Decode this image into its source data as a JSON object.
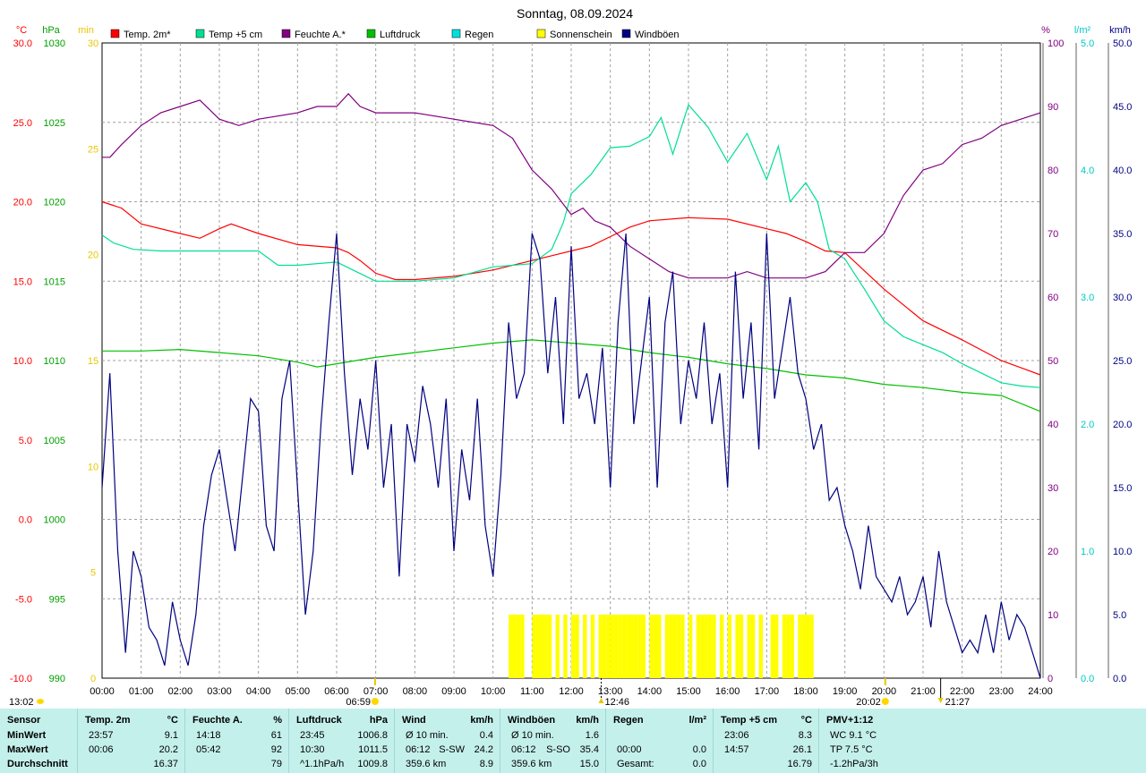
{
  "chart_data": {
    "type": "line",
    "title": "Sonntag, 08.09.2024",
    "x_ticks": [
      "00:00",
      "01:00",
      "02:00",
      "03:00",
      "04:00",
      "05:00",
      "06:00",
      "07:00",
      "08:00",
      "09:00",
      "10:00",
      "11:00",
      "12:00",
      "13:00",
      "14:00",
      "15:00",
      "16:00",
      "17:00",
      "18:00",
      "19:00",
      "20:00",
      "21:00",
      "22:00",
      "23:00",
      "24:00"
    ],
    "x_range": [
      0,
      24
    ],
    "grid": true,
    "legend_position": "top",
    "axes": {
      "temp": {
        "unit": "°C",
        "range": [
          -10,
          30
        ],
        "ticks": [
          "30.0",
          "25.0",
          "20.0",
          "15.0",
          "10.0",
          "5.0",
          "0.0",
          "-5.0",
          "-10.0"
        ],
        "color": "#ff0000"
      },
      "pressure": {
        "unit": "hPa",
        "range": [
          990,
          1030
        ],
        "ticks": [
          "1030",
          "1025",
          "1020",
          "1015",
          "1010",
          "1005",
          "1000",
          "995",
          "990"
        ],
        "color": "#00a000"
      },
      "sun": {
        "unit": "min",
        "range": [
          0,
          30
        ],
        "ticks": [
          "30",
          "25",
          "20",
          "15",
          "10",
          "5",
          "0"
        ],
        "color": "#e6c800"
      },
      "humidity": {
        "unit": "%",
        "range": [
          0,
          100
        ],
        "ticks": [
          "100",
          "90",
          "80",
          "70",
          "60",
          "50",
          "40",
          "30",
          "20",
          "10",
          "0"
        ],
        "color": "#800080"
      },
      "rain": {
        "unit": "l/m²",
        "range": [
          0,
          5
        ],
        "ticks": [
          "5.0",
          "4.0",
          "3.0",
          "2.0",
          "1.0",
          "0.0"
        ],
        "color": "#00c8c8"
      },
      "wind": {
        "unit": "km/h",
        "range": [
          0,
          50
        ],
        "ticks": [
          "50.0",
          "45.0",
          "40.0",
          "35.0",
          "30.0",
          "25.0",
          "20.0",
          "15.0",
          "10.0",
          "5.0",
          "0.0"
        ],
        "color": "#000080"
      }
    },
    "legend": [
      {
        "name": "Temp. 2m*",
        "color": "#ff0000"
      },
      {
        "name": "Temp +5 cm",
        "color": "#00e090"
      },
      {
        "name": "Feuchte A.*",
        "color": "#800080"
      },
      {
        "name": "Luftdruck",
        "color": "#00c000"
      },
      {
        "name": "Regen",
        "color": "#00e0e0"
      },
      {
        "name": "Sonnenschein",
        "color": "#ffff00"
      },
      {
        "name": "Windböen",
        "color": "#000080"
      }
    ],
    "series": [
      {
        "name": "Temp. 2m*",
        "axis": "temp",
        "color": "#ff0000",
        "x": [
          0,
          0.5,
          1,
          2,
          2.5,
          3,
          3.3,
          4,
          5,
          6,
          6.3,
          6.6,
          7,
          7.5,
          8,
          9,
          10,
          11,
          11.5,
          12,
          12.5,
          13,
          13.5,
          14,
          15,
          16,
          17,
          17.5,
          18,
          18.5,
          19,
          20,
          21,
          22,
          23,
          24
        ],
        "y": [
          20.0,
          19.6,
          18.6,
          18.0,
          17.7,
          18.3,
          18.6,
          18.0,
          17.3,
          17.1,
          16.8,
          16.3,
          15.5,
          15.1,
          15.1,
          15.3,
          15.7,
          16.3,
          16.6,
          16.9,
          17.2,
          17.8,
          18.4,
          18.8,
          19.0,
          18.9,
          18.3,
          18.0,
          17.5,
          16.9,
          16.8,
          14.5,
          12.5,
          11.3,
          10.0,
          9.1
        ]
      },
      {
        "name": "Temp +5 cm",
        "axis": "temp",
        "color": "#00e090",
        "x": [
          0,
          0.3,
          0.8,
          1.5,
          2,
          3,
          4,
          4.5,
          5,
          6,
          6.5,
          7,
          8,
          9,
          10,
          11,
          11.5,
          11.8,
          12,
          12.5,
          13,
          13.5,
          14,
          14.3,
          14.6,
          15,
          15.5,
          16,
          16.5,
          17,
          17.3,
          17.6,
          18,
          18.3,
          18.6,
          19,
          19.5,
          20,
          20.5,
          21,
          21.5,
          22,
          22.5,
          23,
          23.5,
          24
        ],
        "y": [
          17.9,
          17.4,
          17.0,
          16.9,
          16.9,
          16.9,
          16.9,
          16.0,
          16.0,
          16.2,
          15.6,
          15.0,
          15.0,
          15.2,
          15.9,
          16.1,
          17.0,
          18.7,
          20.5,
          21.7,
          23.4,
          23.5,
          24.1,
          25.3,
          23.0,
          26.1,
          24.7,
          22.5,
          24.3,
          21.4,
          23.5,
          20.0,
          21.2,
          20.0,
          17.0,
          16.4,
          14.5,
          12.5,
          11.5,
          11.0,
          10.5,
          9.8,
          9.2,
          8.6,
          8.4,
          8.3
        ]
      },
      {
        "name": "Feuchte A.*",
        "axis": "humidity",
        "color": "#800080",
        "x": [
          0,
          0.2,
          0.5,
          1,
          1.5,
          2,
          2.5,
          3,
          3.5,
          4,
          5,
          5.5,
          6,
          6.3,
          6.6,
          7,
          8,
          9,
          10,
          10.5,
          11,
          11.5,
          12,
          12.3,
          12.6,
          13,
          13.5,
          14,
          14.5,
          15,
          15.5,
          16,
          16.5,
          17,
          17.5,
          18,
          18.5,
          19,
          19.5,
          20,
          20.5,
          21,
          21.5,
          22,
          22.5,
          23,
          23.5,
          24
        ],
        "y": [
          82,
          82,
          84,
          87,
          89,
          90,
          91,
          88,
          87,
          88,
          89,
          90,
          90,
          92,
          90,
          89,
          89,
          88,
          87,
          85,
          80,
          77,
          73,
          74,
          72,
          71,
          68,
          66,
          64,
          63,
          63,
          63,
          64,
          63,
          63,
          63,
          64,
          67,
          67,
          70,
          76,
          80,
          81,
          84,
          85,
          87,
          88,
          89
        ]
      },
      {
        "name": "Luftdruck",
        "axis": "pressure",
        "color": "#00c000",
        "x": [
          0,
          1,
          2,
          3,
          4,
          5,
          5.5,
          6,
          7,
          8,
          9,
          10,
          11,
          12,
          13,
          14,
          15,
          16,
          17,
          18,
          19,
          20,
          21,
          22,
          23,
          24
        ],
        "y": [
          1010.6,
          1010.6,
          1010.7,
          1010.5,
          1010.3,
          1009.9,
          1009.6,
          1009.8,
          1010.2,
          1010.5,
          1010.8,
          1011.1,
          1011.3,
          1011.1,
          1010.9,
          1010.5,
          1010.2,
          1009.8,
          1009.5,
          1009.1,
          1008.9,
          1008.5,
          1008.3,
          1008.0,
          1007.8,
          1006.8
        ]
      },
      {
        "name": "Windböen",
        "axis": "wind",
        "color": "#000080",
        "x": [
          0,
          0.2,
          0.4,
          0.6,
          0.8,
          1,
          1.2,
          1.4,
          1.6,
          1.8,
          2,
          2.2,
          2.4,
          2.6,
          2.8,
          3,
          3.2,
          3.4,
          3.6,
          3.8,
          4,
          4.2,
          4.4,
          4.6,
          4.8,
          5,
          5.2,
          5.4,
          5.6,
          5.8,
          6,
          6.2,
          6.4,
          6.6,
          6.8,
          7,
          7.2,
          7.4,
          7.6,
          7.8,
          8,
          8.2,
          8.4,
          8.6,
          8.8,
          9,
          9.2,
          9.4,
          9.6,
          9.8,
          10,
          10.2,
          10.4,
          10.6,
          10.8,
          11,
          11.2,
          11.4,
          11.6,
          11.8,
          12,
          12.2,
          12.4,
          12.6,
          12.8,
          13,
          13.2,
          13.4,
          13.6,
          13.8,
          14,
          14.2,
          14.4,
          14.6,
          14.8,
          15,
          15.2,
          15.4,
          15.6,
          15.8,
          16,
          16.2,
          16.4,
          16.6,
          16.8,
          17,
          17.2,
          17.4,
          17.6,
          17.8,
          18,
          18.2,
          18.4,
          18.6,
          18.8,
          19,
          19.2,
          19.4,
          19.6,
          19.8,
          20,
          20.2,
          20.4,
          20.6,
          20.8,
          21,
          21.2,
          21.4,
          21.6,
          21.8,
          22,
          22.2,
          22.4,
          22.6,
          22.8,
          23,
          23.2,
          23.4,
          23.6,
          23.8,
          24
        ],
        "y": [
          15,
          24,
          10,
          2,
          10,
          8,
          4,
          3,
          1,
          6,
          3,
          1,
          5,
          12,
          16,
          18,
          14,
          10,
          16,
          22,
          21,
          12,
          10,
          22,
          25,
          15,
          5,
          10,
          20,
          28,
          35,
          24,
          16,
          22,
          18,
          25,
          15,
          20,
          8,
          20,
          17,
          23,
          20,
          15,
          22,
          10,
          18,
          14,
          22,
          12,
          8,
          16,
          28,
          22,
          24,
          35,
          33,
          24,
          30,
          20,
          34,
          22,
          24,
          20,
          26,
          15,
          28,
          35,
          20,
          25,
          30,
          15,
          28,
          32,
          20,
          25,
          22,
          28,
          20,
          24,
          15,
          32,
          22,
          28,
          18,
          35,
          22,
          26,
          30,
          24,
          22,
          18,
          20,
          14,
          15,
          12,
          10,
          7,
          12,
          8,
          7,
          6,
          8,
          5,
          6,
          8,
          4,
          10,
          6,
          4,
          2,
          3,
          2,
          5,
          2,
          6,
          3,
          5,
          4,
          2,
          0
        ]
      },
      {
        "name": "Sonnenschein",
        "axis": "sun",
        "color": "#ffff00",
        "type": "bar",
        "x": [
          10.4,
          10.5,
          10.6,
          10.7,
          11.0,
          11.1,
          11.2,
          11.3,
          11.4,
          11.6,
          11.8,
          12.0,
          12.1,
          12.3,
          12.5,
          12.7,
          12.8,
          12.9,
          13.0,
          13.1,
          13.2,
          13.3,
          13.4,
          13.5,
          13.6,
          13.7,
          13.8,
          14.0,
          14.1,
          14.2,
          14.4,
          14.5,
          14.6,
          14.7,
          14.8,
          15.0,
          15.2,
          15.3,
          15.4,
          15.5,
          15.6,
          15.8,
          16.0,
          16.2,
          16.3,
          16.5,
          16.6,
          16.8,
          17.1,
          17.2,
          17.4,
          17.5,
          17.6,
          17.8,
          17.9,
          18.0,
          18.1
        ],
        "y": [
          3,
          3,
          3,
          3,
          3,
          3,
          3,
          3,
          3,
          3,
          3,
          3,
          3,
          3,
          3,
          3,
          3,
          3,
          3,
          3,
          3,
          3,
          3,
          3,
          3,
          3,
          3,
          3,
          3,
          3,
          3,
          3,
          3,
          3,
          3,
          3,
          3,
          3,
          3,
          3,
          3,
          3,
          3,
          3,
          3,
          3,
          3,
          3,
          3,
          3,
          3,
          3,
          3,
          3,
          3,
          3,
          3
        ]
      }
    ],
    "annotations": {
      "sunrise": "06:59",
      "noon": "12:46",
      "sunset": "20:02",
      "moonrise": "13:02",
      "moonset": "21:27"
    }
  },
  "stats": {
    "columns": [
      {
        "title": "Sensor",
        "unit": "",
        "rows": [
          [
            "MinWert",
            "",
            ""
          ],
          [
            "MaxWert",
            "",
            ""
          ],
          [
            "Durchschnitt",
            "",
            ""
          ]
        ]
      },
      {
        "title": "Temp. 2m",
        "unit": "°C",
        "rows": [
          [
            "23:57",
            "",
            "9.1"
          ],
          [
            "00:06",
            "",
            "20.2"
          ],
          [
            "",
            "",
            "16.37"
          ]
        ]
      },
      {
        "title": "Feuchte A.",
        "unit": "%",
        "rows": [
          [
            "14:18",
            "",
            "61"
          ],
          [
            "05:42",
            "",
            "92"
          ],
          [
            "",
            "",
            "79"
          ]
        ]
      },
      {
        "title": "Luftdruck",
        "unit": "hPa",
        "rows": [
          [
            "23:45",
            "",
            "1006.8"
          ],
          [
            "10:30",
            "",
            "1011.5"
          ],
          [
            "^1.1hPa/h",
            "",
            "1009.8"
          ]
        ]
      },
      {
        "title": "Wind",
        "unit": "km/h",
        "rows": [
          [
            "Ø 10 min.",
            "",
            "0.4"
          ],
          [
            "06:12",
            "S-SW",
            "24.2"
          ],
          [
            "359.6 km",
            "",
            "8.9"
          ]
        ]
      },
      {
        "title": "Windböen",
        "unit": "km/h",
        "rows": [
          [
            "Ø 10 min.",
            "",
            "1.6"
          ],
          [
            "06:12",
            "S-SO",
            "35.4"
          ],
          [
            "359.6 km",
            "",
            "15.0"
          ]
        ]
      },
      {
        "title": "Regen",
        "unit": "l/m²",
        "rows": [
          [
            "",
            "",
            ""
          ],
          [
            "00:00",
            "",
            "0.0"
          ],
          [
            "Gesamt:",
            "",
            "0.0"
          ]
        ]
      },
      {
        "title": "Temp +5 cm",
        "unit": "°C",
        "rows": [
          [
            "23:06",
            "",
            "8.3"
          ],
          [
            "14:57",
            "",
            "26.1"
          ],
          [
            "",
            "",
            "16.79"
          ]
        ]
      },
      {
        "title": "PMV+1:12",
        "unit": "",
        "rows": [
          [
            "WC 9.1 °C",
            "",
            ""
          ],
          [
            "TP 7.5 °C",
            "",
            ""
          ],
          [
            "-1.2hPa/3h",
            "",
            ""
          ]
        ]
      }
    ]
  }
}
